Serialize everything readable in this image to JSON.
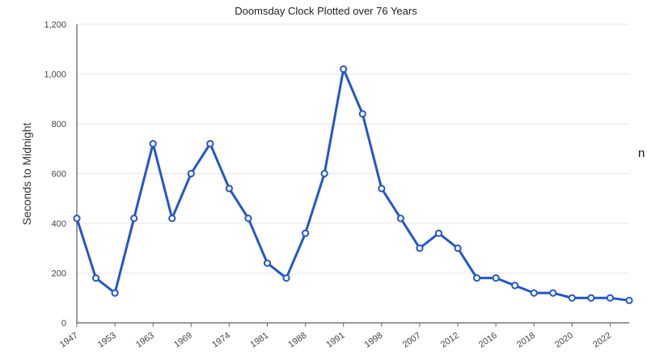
{
  "chart_data": {
    "type": "line",
    "title": "Doomsday Clock Plotted over 76 Years",
    "ylabel": "Seconds to Midnight",
    "xlabel": "",
    "ylim": [
      0,
      1200
    ],
    "yticks": [
      0,
      200,
      400,
      600,
      800,
      1000,
      1200
    ],
    "ytick_labels": [
      "0",
      "200",
      "400",
      "600",
      "800",
      "1,000",
      "1,200"
    ],
    "grid": true,
    "x_tick_labels": [
      "1947",
      "1953",
      "1963",
      "1969",
      "1974",
      "1981",
      "1988",
      "1991",
      "1998",
      "2007",
      "2012",
      "2016",
      "2018",
      "2020",
      "2022"
    ],
    "x_tick_point_indexes": [
      0,
      2,
      4,
      6,
      8,
      10,
      12,
      14,
      16,
      18,
      20,
      22,
      24,
      26,
      28
    ],
    "series": [
      {
        "color": "#2457c5",
        "values": [
          420,
          180,
          120,
          420,
          720,
          420,
          600,
          720,
          540,
          420,
          240,
          180,
          360,
          600,
          1020,
          840,
          540,
          420,
          300,
          360,
          300,
          180,
          180,
          150,
          120,
          120,
          100,
          100,
          100,
          90
        ]
      }
    ]
  },
  "stray_text": "n"
}
